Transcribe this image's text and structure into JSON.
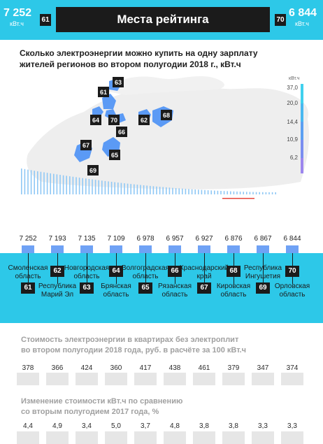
{
  "header": {
    "left_value": "7 252",
    "left_unit": "кВт.ч",
    "left_rank": "61",
    "title": "Места рейтинга",
    "right_rank": "70",
    "right_value": "6 844",
    "right_unit": "кВт.ч"
  },
  "map": {
    "subtitle_line1": "Сколько электроэнергии можно купить на одну зарплату",
    "subtitle_line2": "жителей регионов во втором полугодии 2018 г., кВт.ч",
    "legend_unit": "кВт.ч",
    "legend_ticks": [
      "37,0",
      "20,0",
      "14,4",
      "10,9",
      "6,2"
    ],
    "labels": [
      "63",
      "61",
      "64",
      "70",
      "66",
      "62",
      "68",
      "67",
      "65",
      "69"
    ],
    "fill_color": "#5b9af5",
    "land_color": "#eeeeee"
  },
  "chart_data": [
    {
      "type": "bar",
      "title": "Места рейтинга",
      "ylabel": "кВт.ч",
      "categories": [
        "Смоленская область",
        "Республика Марий Эл",
        "Новгородская область",
        "Брянская область",
        "Волгоградская область",
        "Рязанская область",
        "Краснодарский край",
        "Кировская область",
        "Республика Ингушетия",
        "Орловская область"
      ],
      "ranks": [
        "61",
        "62",
        "63",
        "64",
        "65",
        "66",
        "67",
        "68",
        "69",
        "70"
      ],
      "values": [
        7252,
        7193,
        7135,
        7109,
        6978,
        6957,
        6927,
        6876,
        6867,
        6844
      ],
      "value_labels": [
        "7 252",
        "7 193",
        "7 135",
        "7 109",
        "6 978",
        "6 957",
        "6 927",
        "6 876",
        "6 867",
        "6 844"
      ]
    },
    {
      "type": "bar",
      "title": "Стоимость электроэнергии в квартирах без электроплит во втором полугодии 2018 года, руб. в расчёте за 100 кВт.ч",
      "values": [
        378,
        366,
        424,
        360,
        417,
        438,
        461,
        379,
        347,
        374
      ]
    },
    {
      "type": "bar",
      "title": "Изменение стоимости кВт.ч по сравнению со вторым полугодием 2017 года, %",
      "values": [
        4.4,
        4.9,
        3.4,
        5.0,
        3.7,
        4.8,
        3.8,
        3.8,
        3.3,
        3.3
      ],
      "value_labels": [
        "4,4",
        "4,9",
        "3,4",
        "5,0",
        "3,7",
        "4,8",
        "3,8",
        "3,8",
        "3,3",
        "3,3"
      ]
    }
  ],
  "regions": [
    {
      "name_line1": "Смоленская",
      "name_line2": "область",
      "rank": "61"
    },
    {
      "name_line1": "Республика",
      "name_line2": "Марий Эл",
      "rank": "62"
    },
    {
      "name_line1": "Новгородская",
      "name_line2": "область",
      "rank": "63"
    },
    {
      "name_line1": "Брянская",
      "name_line2": "область",
      "rank": "64"
    },
    {
      "name_line1": "Волгоградская",
      "name_line2": "область",
      "rank": "65"
    },
    {
      "name_line1": "Рязанская",
      "name_line2": "область",
      "rank": "66"
    },
    {
      "name_line1": "Краснодарский",
      "name_line2": "край",
      "rank": "67"
    },
    {
      "name_line1": "Кировская",
      "name_line2": "область",
      "rank": "68"
    },
    {
      "name_line1": "Республика",
      "name_line2": "Ингушетия",
      "rank": "69"
    },
    {
      "name_line1": "Орловская",
      "name_line2": "область",
      "rank": "70"
    }
  ],
  "section2": {
    "line1": "Стоимость электроэнергии в квартирах без электроплит",
    "line2": "во втором полугодии 2018 года, руб. в расчёте за 100 кВт.ч"
  },
  "section3": {
    "line1": "Изменение стоимости кВт.ч  по сравнению",
    "line2": "со вторым полугодием 2017 года, %"
  },
  "colors": {
    "accent": "#2dc8e8",
    "dark": "#1b1b1b",
    "marker": "#6fa2f5",
    "highlight": "#e8453c"
  }
}
